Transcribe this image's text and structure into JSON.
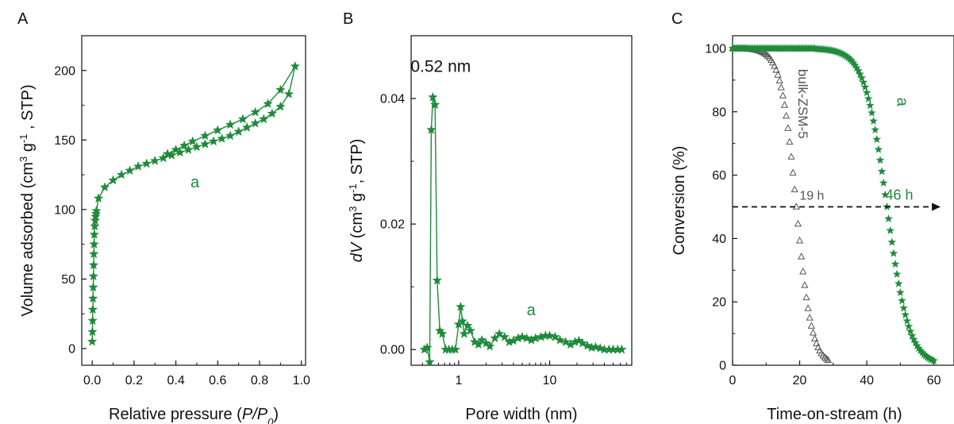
{
  "colors": {
    "series_a": "#1e8b3a",
    "bulk": "#555555",
    "axis": "#111111",
    "arrow": "#111111"
  },
  "chart_data": [
    {
      "panel": "A",
      "type": "line",
      "xlabel_parts": [
        "Relative pressure (",
        "P/P",
        "0",
        ")"
      ],
      "ylabel_parts": [
        "Volume adsorbed (cm",
        "3",
        " g",
        "-1",
        " , STP)"
      ],
      "xlim": [
        -0.05,
        1.02
      ],
      "ylim": [
        -12,
        225
      ],
      "xticks": [
        0.0,
        0.2,
        0.4,
        0.6,
        0.8,
        1.0
      ],
      "xticklabels": [
        "0.0",
        "0.2",
        "0.4",
        "0.6",
        "0.8",
        "1.0"
      ],
      "yticks": [
        0,
        50,
        100,
        150,
        200
      ],
      "yticklabels": [
        "0",
        "50",
        "100",
        "150",
        "200"
      ],
      "annotations": [
        {
          "text": "a",
          "x": 0.5,
          "y": 120
        }
      ],
      "series": [
        {
          "name": "a",
          "marker": "star",
          "x": [
            0.0,
            0.001,
            0.002,
            0.003,
            0.004,
            0.005,
            0.006,
            0.007,
            0.008,
            0.009,
            0.01,
            0.012,
            0.014,
            0.016,
            0.018,
            0.02,
            0.03,
            0.06,
            0.1,
            0.14,
            0.18,
            0.22,
            0.26,
            0.3,
            0.34,
            0.38,
            0.42,
            0.46,
            0.5,
            0.54,
            0.58,
            0.62,
            0.66,
            0.7,
            0.74,
            0.78,
            0.82,
            0.86,
            0.9,
            0.94,
            0.97,
            0.9,
            0.84,
            0.78,
            0.72,
            0.66,
            0.6,
            0.54,
            0.48,
            0.44,
            0.4,
            0.36
          ],
          "y": [
            5,
            12,
            20,
            28,
            36,
            44,
            52,
            60,
            68,
            75,
            82,
            88,
            92,
            95,
            97,
            99,
            108,
            116,
            121,
            125,
            128,
            131,
            133,
            135,
            137,
            139,
            141,
            143,
            145,
            147,
            149,
            151,
            153,
            156,
            159,
            162,
            165,
            169,
            174,
            183,
            203,
            186,
            176,
            170,
            165,
            161,
            157,
            153,
            149,
            146,
            143,
            140
          ]
        }
      ]
    },
    {
      "panel": "B",
      "type": "line",
      "xscale": "log",
      "xlabel": "Pore width (nm)",
      "ylabel_parts": [
        "dV",
        " (cm",
        "3",
        " g",
        "-1",
        ", STP)"
      ],
      "xlim": [
        0.3,
        80
      ],
      "ylim": [
        -0.0025,
        0.05
      ],
      "xticks": [
        1,
        10
      ],
      "xticklabels": [
        "1",
        "10"
      ],
      "yticks": [
        0.0,
        0.02,
        0.04
      ],
      "yticklabels": [
        "0.00",
        "0.02",
        "0.04"
      ],
      "annotations": [
        {
          "text": "0.52 nm",
          "x": 0.52,
          "y": 0.043
        },
        {
          "text": "a",
          "x": 5.6,
          "y": 0.0055
        }
      ],
      "series": [
        {
          "name": "a",
          "marker": "star",
          "x": [
            0.42,
            0.45,
            0.48,
            0.5,
            0.52,
            0.55,
            0.58,
            0.62,
            0.66,
            0.72,
            0.78,
            0.85,
            0.92,
            1.0,
            1.05,
            1.1,
            1.15,
            1.25,
            1.35,
            1.5,
            1.65,
            1.8,
            2.0,
            2.2,
            2.5,
            2.8,
            3.2,
            3.6,
            4.0,
            4.5,
            5.0,
            5.6,
            6.3,
            7.0,
            8.0,
            9.0,
            10.0,
            11.5,
            13.0,
            15.0,
            17.0,
            19.0,
            21.0,
            23.0,
            26.0,
            29.0,
            32.0,
            36.0,
            40.0,
            45.0,
            50.0,
            56.0,
            62.0
          ],
          "y": [
            0.0,
            0.0003,
            -0.002,
            0.035,
            0.0402,
            0.039,
            0.011,
            0.003,
            0.0025,
            0.0,
            0.0,
            0.0,
            0.0,
            0.004,
            0.0068,
            0.0045,
            0.0025,
            0.0038,
            0.003,
            0.0012,
            0.0008,
            0.0015,
            0.001,
            0.0005,
            0.0018,
            0.0025,
            0.002,
            0.0012,
            0.0014,
            0.0018,
            0.002,
            0.0018,
            0.0015,
            0.0018,
            0.002,
            0.0022,
            0.0022,
            0.002,
            0.0015,
            0.0012,
            0.0008,
            0.0012,
            0.0014,
            0.001,
            0.0006,
            0.0003,
            0.0004,
            0.0002,
            0.0,
            0.0,
            0.0,
            0.0,
            0.0
          ]
        }
      ]
    },
    {
      "panel": "C",
      "type": "scatter",
      "xlabel": "Time-on-stream (h)",
      "ylabel": "Conversion (%)",
      "xlim": [
        0,
        66
      ],
      "ylim": [
        0,
        104
      ],
      "xticks": [
        0,
        20,
        40,
        60
      ],
      "xticklabels": [
        "0",
        "20",
        "40",
        "60"
      ],
      "yticks": [
        0,
        20,
        40,
        60,
        80,
        100
      ],
      "yticklabels": [
        "0",
        "20",
        "40",
        "60",
        "80",
        "100"
      ],
      "reference_line": {
        "y": 50,
        "x_start": 0,
        "x_end": 62,
        "style": "dashed-arrow"
      },
      "annotations": [
        {
          "text": "19 h",
          "x": 19,
          "y": 50,
          "color": "bulk"
        },
        {
          "text": "46 h",
          "x": 46,
          "y": 50,
          "color": "series_a"
        },
        {
          "text": "bulk-ZSM-5",
          "x": 21,
          "y": 90,
          "color": "bulk",
          "rotation": 90
        },
        {
          "text": "a",
          "x": 50,
          "y": 82,
          "color": "series_a",
          "rotation": 90
        }
      ],
      "series": [
        {
          "name": "bulk-ZSM-5",
          "marker": "triangle-open",
          "model": {
            "form": "logistic",
            "x50": 19,
            "width": 2.3,
            "x_from": 0,
            "x_to": 28.5,
            "step": 0.5
          }
        },
        {
          "name": "a",
          "marker": "star",
          "model": {
            "form": "logistic",
            "x50": 46,
            "width": 3.3,
            "x_from": 0,
            "x_to": 60,
            "step": 0.5
          }
        }
      ]
    }
  ],
  "panel_letters": {
    "A": "A",
    "B": "B",
    "C": "C"
  }
}
